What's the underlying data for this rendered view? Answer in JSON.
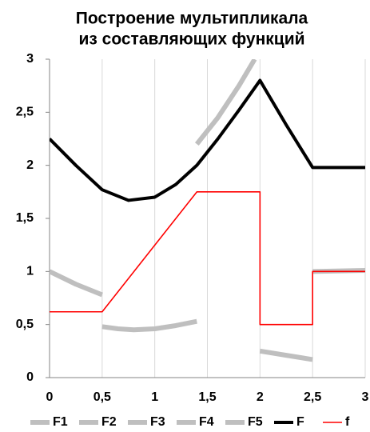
{
  "chart_data": {
    "type": "line",
    "title": [
      "Построение мультипликала",
      "из составляющих функций"
    ],
    "xlim": [
      0,
      3
    ],
    "ylim": [
      0,
      3
    ],
    "xticks": [
      0,
      {
        "value": 0.5,
        "label": "0,5"
      },
      1,
      {
        "value": 1.5,
        "label": "1,5"
      },
      2,
      {
        "value": 2.5,
        "label": "2,5"
      },
      3
    ],
    "yticks": [
      0,
      {
        "value": 0.5,
        "label": "0,5"
      },
      1,
      {
        "value": 1.5,
        "label": "1,5"
      },
      2,
      {
        "value": 2.5,
        "label": "2,5"
      },
      3
    ],
    "xgrid": true,
    "legend": "bottom",
    "series": [
      {
        "name": "F1",
        "color": "#bfbfbf",
        "width": 6,
        "x": [
          0,
          0.25,
          0.5
        ],
        "values": [
          1.0,
          0.88,
          0.78
        ]
      },
      {
        "name": "F2",
        "color": "#bfbfbf",
        "width": 6,
        "x": [
          0.5,
          0.65,
          0.8,
          1.0,
          1.2,
          1.4
        ],
        "values": [
          0.48,
          0.46,
          0.45,
          0.46,
          0.49,
          0.53
        ]
      },
      {
        "name": "F3",
        "color": "#bfbfbf",
        "width": 6,
        "x": [
          1.4,
          1.6,
          1.8,
          1.95
        ],
        "values": [
          2.2,
          2.45,
          2.75,
          3.0
        ]
      },
      {
        "name": "F4",
        "color": "#bfbfbf",
        "width": 6,
        "x": [
          2,
          2.25,
          2.5
        ],
        "values": [
          0.25,
          0.21,
          0.17
        ]
      },
      {
        "name": "F5",
        "color": "#bfbfbf",
        "width": 6,
        "x": [
          2.5,
          3
        ],
        "values": [
          1.0,
          1.01
        ]
      },
      {
        "name": "F",
        "color": "#000000",
        "width": 4,
        "x": [
          0,
          0.25,
          0.5,
          0.75,
          1.0,
          1.2,
          1.4,
          1.6,
          1.8,
          2.0,
          2.25,
          2.5,
          3
        ],
        "values": [
          2.25,
          2.0,
          1.77,
          1.67,
          1.7,
          1.82,
          2.0,
          2.25,
          2.52,
          2.8,
          2.38,
          1.98,
          1.98
        ]
      },
      {
        "name": "f",
        "color": "#ff0000",
        "width": 1.6,
        "x": [
          0,
          0.5,
          1.4,
          2,
          2,
          2.5,
          2.5,
          3
        ],
        "values": [
          0.62,
          0.62,
          1.75,
          1.75,
          0.5,
          0.5,
          1.0,
          1.0
        ]
      }
    ]
  }
}
